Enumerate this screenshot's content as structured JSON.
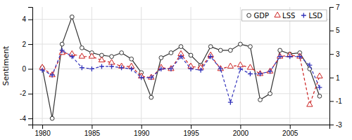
{
  "chart_data": {
    "type": "line",
    "x": [
      1980,
      1981,
      1982,
      1983,
      1984,
      1985,
      1986,
      1987,
      1988,
      1989,
      1990,
      1991,
      1992,
      1993,
      1994,
      1995,
      1996,
      1997,
      1998,
      1999,
      2000,
      2001,
      2002,
      2003,
      2004,
      2005,
      2006,
      2007,
      2008
    ],
    "series": [
      {
        "name": "GDP",
        "color": "#333333",
        "marker": "circle",
        "line_style": "solid",
        "values": [
          0.1,
          -4.0,
          2.0,
          4.2,
          1.7,
          1.3,
          1.1,
          1.0,
          1.3,
          0.8,
          -0.3,
          -2.3,
          0.9,
          1.3,
          1.8,
          1.1,
          0.3,
          1.8,
          1.5,
          1.5,
          2.0,
          1.8,
          -2.5,
          -2.0,
          1.5,
          1.2,
          1.3,
          0.0,
          -2.2
        ]
      },
      {
        "name": "LSS",
        "color": "#cc2222",
        "marker": "triangle",
        "line_style": "dashed",
        "values": [
          0.1,
          -0.5,
          1.3,
          1.2,
          1.0,
          1.0,
          0.7,
          0.5,
          0.2,
          0.2,
          -0.6,
          -0.7,
          0.1,
          0.0,
          1.2,
          0.2,
          0.1,
          1.1,
          0.0,
          0.2,
          0.3,
          0.1,
          -0.4,
          -0.2,
          1.0,
          1.1,
          1.0,
          -2.9,
          -0.6
        ]
      },
      {
        "name": "LSD",
        "color": "#3333bb",
        "marker": "plus",
        "line_style": "dashed",
        "values": [
          -0.1,
          -0.5,
          1.5,
          1.0,
          0.1,
          0.0,
          0.2,
          0.2,
          0.1,
          0.0,
          -0.7,
          -0.7,
          0.0,
          0.0,
          1.0,
          0.0,
          -0.1,
          1.0,
          0.0,
          -2.7,
          0.0,
          -0.4,
          -0.4,
          -0.2,
          1.0,
          1.0,
          1.0,
          0.3,
          -1.5
        ]
      }
    ],
    "y_label": "Sentiment",
    "xlim": [
      1979,
      2009
    ],
    "xticks": [
      1980,
      1985,
      1990,
      1995,
      2000,
      2005
    ],
    "ylim": [
      -4.5,
      5.0
    ],
    "yticks": [
      -4,
      -2,
      0,
      2,
      4
    ],
    "y2lim": [
      -3,
      7
    ],
    "y2ticks": [
      -3,
      -1,
      1,
      3,
      5,
      7
    ],
    "grid": true,
    "legend": "upper right"
  }
}
